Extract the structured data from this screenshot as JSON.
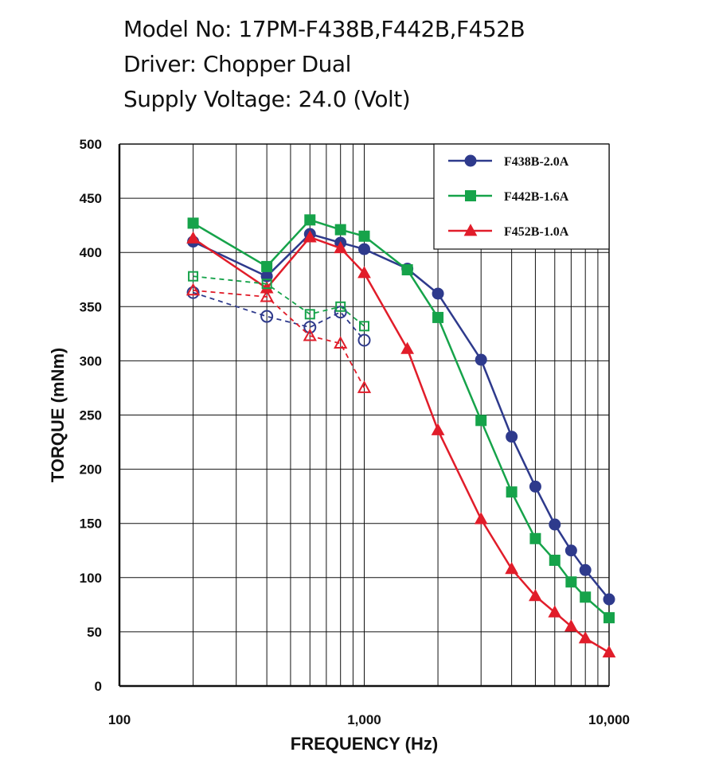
{
  "header": {
    "lines": [
      "Model No: 17PM-F438B,F442B,F452B",
      "Driver: Chopper Dual",
      "Supply Voltage: 24.0 (Volt)"
    ]
  },
  "chart_data": {
    "type": "line",
    "xlabel": "FREQUENCY (Hz)",
    "ylabel": "TORQUE (mNm)",
    "xscale": "log",
    "xlim": [
      100,
      10000
    ],
    "ylim": [
      0,
      500
    ],
    "x_tick_labels": [
      "100",
      "1,000",
      "10,000"
    ],
    "x_tick_values": [
      100,
      1000,
      10000
    ],
    "y_ticks": [
      0,
      50,
      100,
      150,
      200,
      250,
      300,
      350,
      400,
      450,
      500
    ],
    "grid": true,
    "legend_position": "top-right",
    "series": [
      {
        "name": "F438B-2.0A",
        "color": "#2e3a8c",
        "marker": "circle",
        "style": "solid",
        "points": [
          [
            200,
            410
          ],
          [
            400,
            378
          ],
          [
            600,
            417
          ],
          [
            800,
            409
          ],
          [
            1000,
            403
          ],
          [
            1500,
            385
          ],
          [
            2000,
            362
          ],
          [
            3000,
            301
          ],
          [
            4000,
            230
          ],
          [
            5000,
            184
          ],
          [
            6000,
            149
          ],
          [
            7000,
            125
          ],
          [
            8000,
            107
          ],
          [
            10000,
            80
          ]
        ]
      },
      {
        "name": "F442B-1.6A",
        "color": "#16a34a",
        "marker": "square",
        "style": "solid",
        "points": [
          [
            200,
            427
          ],
          [
            400,
            387
          ],
          [
            600,
            430
          ],
          [
            800,
            421
          ],
          [
            1000,
            415
          ],
          [
            1500,
            384
          ],
          [
            2000,
            340
          ],
          [
            3000,
            245
          ],
          [
            4000,
            179
          ],
          [
            5000,
            136
          ],
          [
            6000,
            116
          ],
          [
            7000,
            96
          ],
          [
            8000,
            82
          ],
          [
            10000,
            63
          ]
        ]
      },
      {
        "name": "F452B-1.0A",
        "color": "#e11d2a",
        "marker": "triangle",
        "style": "solid",
        "points": [
          [
            200,
            413
          ],
          [
            400,
            367
          ],
          [
            600,
            414
          ],
          [
            800,
            404
          ],
          [
            1000,
            381
          ],
          [
            1500,
            311
          ],
          [
            2000,
            236
          ],
          [
            3000,
            154
          ],
          [
            4000,
            108
          ],
          [
            5000,
            83
          ],
          [
            6000,
            68
          ],
          [
            7000,
            55
          ],
          [
            8000,
            44
          ],
          [
            10000,
            31
          ]
        ]
      },
      {
        "color": "#2e3a8c",
        "marker": "circle-open",
        "style": "dashed",
        "points": [
          [
            200,
            363
          ],
          [
            400,
            341
          ],
          [
            600,
            331
          ],
          [
            800,
            345
          ],
          [
            1000,
            319
          ]
        ]
      },
      {
        "color": "#16a34a",
        "marker": "square-open",
        "style": "dashed",
        "points": [
          [
            200,
            378
          ],
          [
            400,
            371
          ],
          [
            600,
            343
          ],
          [
            800,
            350
          ],
          [
            1000,
            332
          ]
        ]
      },
      {
        "color": "#e11d2a",
        "marker": "triangle-open",
        "style": "dashed",
        "points": [
          [
            200,
            365
          ],
          [
            400,
            359
          ],
          [
            600,
            323
          ],
          [
            800,
            316
          ],
          [
            1000,
            275
          ]
        ]
      }
    ]
  }
}
